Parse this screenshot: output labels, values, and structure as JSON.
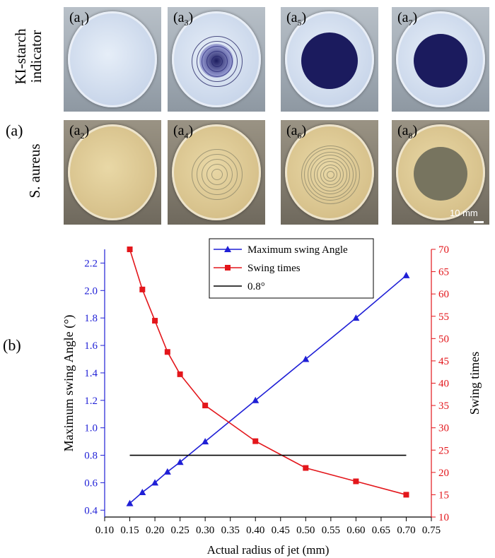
{
  "panel_a": {
    "tag": "(a)",
    "row_top_label_line1": "KI-starch",
    "row_top_label_line2": "indicator",
    "row_bottom_label": "S. aureus",
    "photos": [
      {
        "label_main": "(a",
        "label_sub": "1",
        "label_end": ")",
        "row": "top",
        "stain": "none"
      },
      {
        "label_main": "(a",
        "label_sub": "3",
        "label_end": ")",
        "row": "top",
        "stain": "rings"
      },
      {
        "label_main": "(a",
        "label_sub": "5",
        "label_end": ")",
        "row": "top",
        "stain": "large"
      },
      {
        "label_main": "(a",
        "label_sub": "7",
        "label_end": ")",
        "row": "top",
        "stain": "solid"
      },
      {
        "label_main": "(a",
        "label_sub": "2",
        "label_end": ")",
        "row": "bottom",
        "stain": "none"
      },
      {
        "label_main": "(a",
        "label_sub": "4",
        "label_end": ")",
        "row": "bottom",
        "stain": "rings"
      },
      {
        "label_main": "(a",
        "label_sub": "6",
        "label_end": ")",
        "row": "bottom",
        "stain": "dense"
      },
      {
        "label_main": "(a",
        "label_sub": "8",
        "label_end": ")",
        "row": "bottom",
        "stain": "solid"
      }
    ],
    "scale_bar_text": "10 mm"
  },
  "panel_b": {
    "tag": "(b)"
  },
  "colors": {
    "blue": "#1f1fd6",
    "red": "#e3161b",
    "black": "#000000",
    "ki_stain": "#1b1b5e",
    "sa_clear": "#77745f"
  },
  "chart_data": {
    "type": "line",
    "xlabel": "Actual radius of jet (mm)",
    "ylabel_left": "Maximum swing Angle (°)",
    "ylabel_right": "Swing times",
    "xlim": [
      0.1,
      0.75
    ],
    "xticks": [
      "0.10",
      "0.15",
      "0.20",
      "0.25",
      "0.30",
      "0.35",
      "0.40",
      "0.45",
      "0.50",
      "0.55",
      "0.60",
      "0.65",
      "0.70",
      "0.75"
    ],
    "ylim_left": [
      0.35,
      2.3
    ],
    "yticks_left": [
      "0.4",
      "0.6",
      "0.8",
      "1.0",
      "1.2",
      "1.4",
      "1.6",
      "1.8",
      "2.0",
      "2.2"
    ],
    "ylim_right": [
      10,
      70
    ],
    "yticks_right": [
      "10",
      "15",
      "20",
      "25",
      "30",
      "35",
      "40",
      "45",
      "50",
      "55",
      "60",
      "65",
      "70"
    ],
    "legend_position": "top-right",
    "series": [
      {
        "name": "Maximum swing Angle",
        "axis": "left",
        "marker": "triangle",
        "x": [
          0.15,
          0.175,
          0.2,
          0.225,
          0.25,
          0.3,
          0.4,
          0.5,
          0.6,
          0.7
        ],
        "y": [
          0.45,
          0.53,
          0.6,
          0.68,
          0.75,
          0.9,
          1.2,
          1.5,
          1.8,
          2.11
        ]
      },
      {
        "name": "Swing times",
        "axis": "right",
        "marker": "square",
        "x": [
          0.15,
          0.175,
          0.2,
          0.225,
          0.25,
          0.3,
          0.4,
          0.5,
          0.6,
          0.7
        ],
        "y": [
          70,
          61,
          54,
          47,
          42,
          35,
          27,
          21,
          18,
          15
        ]
      },
      {
        "name": "0.8°",
        "axis": "left",
        "marker": "none",
        "x": [
          0.15,
          0.7
        ],
        "y": [
          0.8,
          0.8
        ]
      }
    ]
  }
}
